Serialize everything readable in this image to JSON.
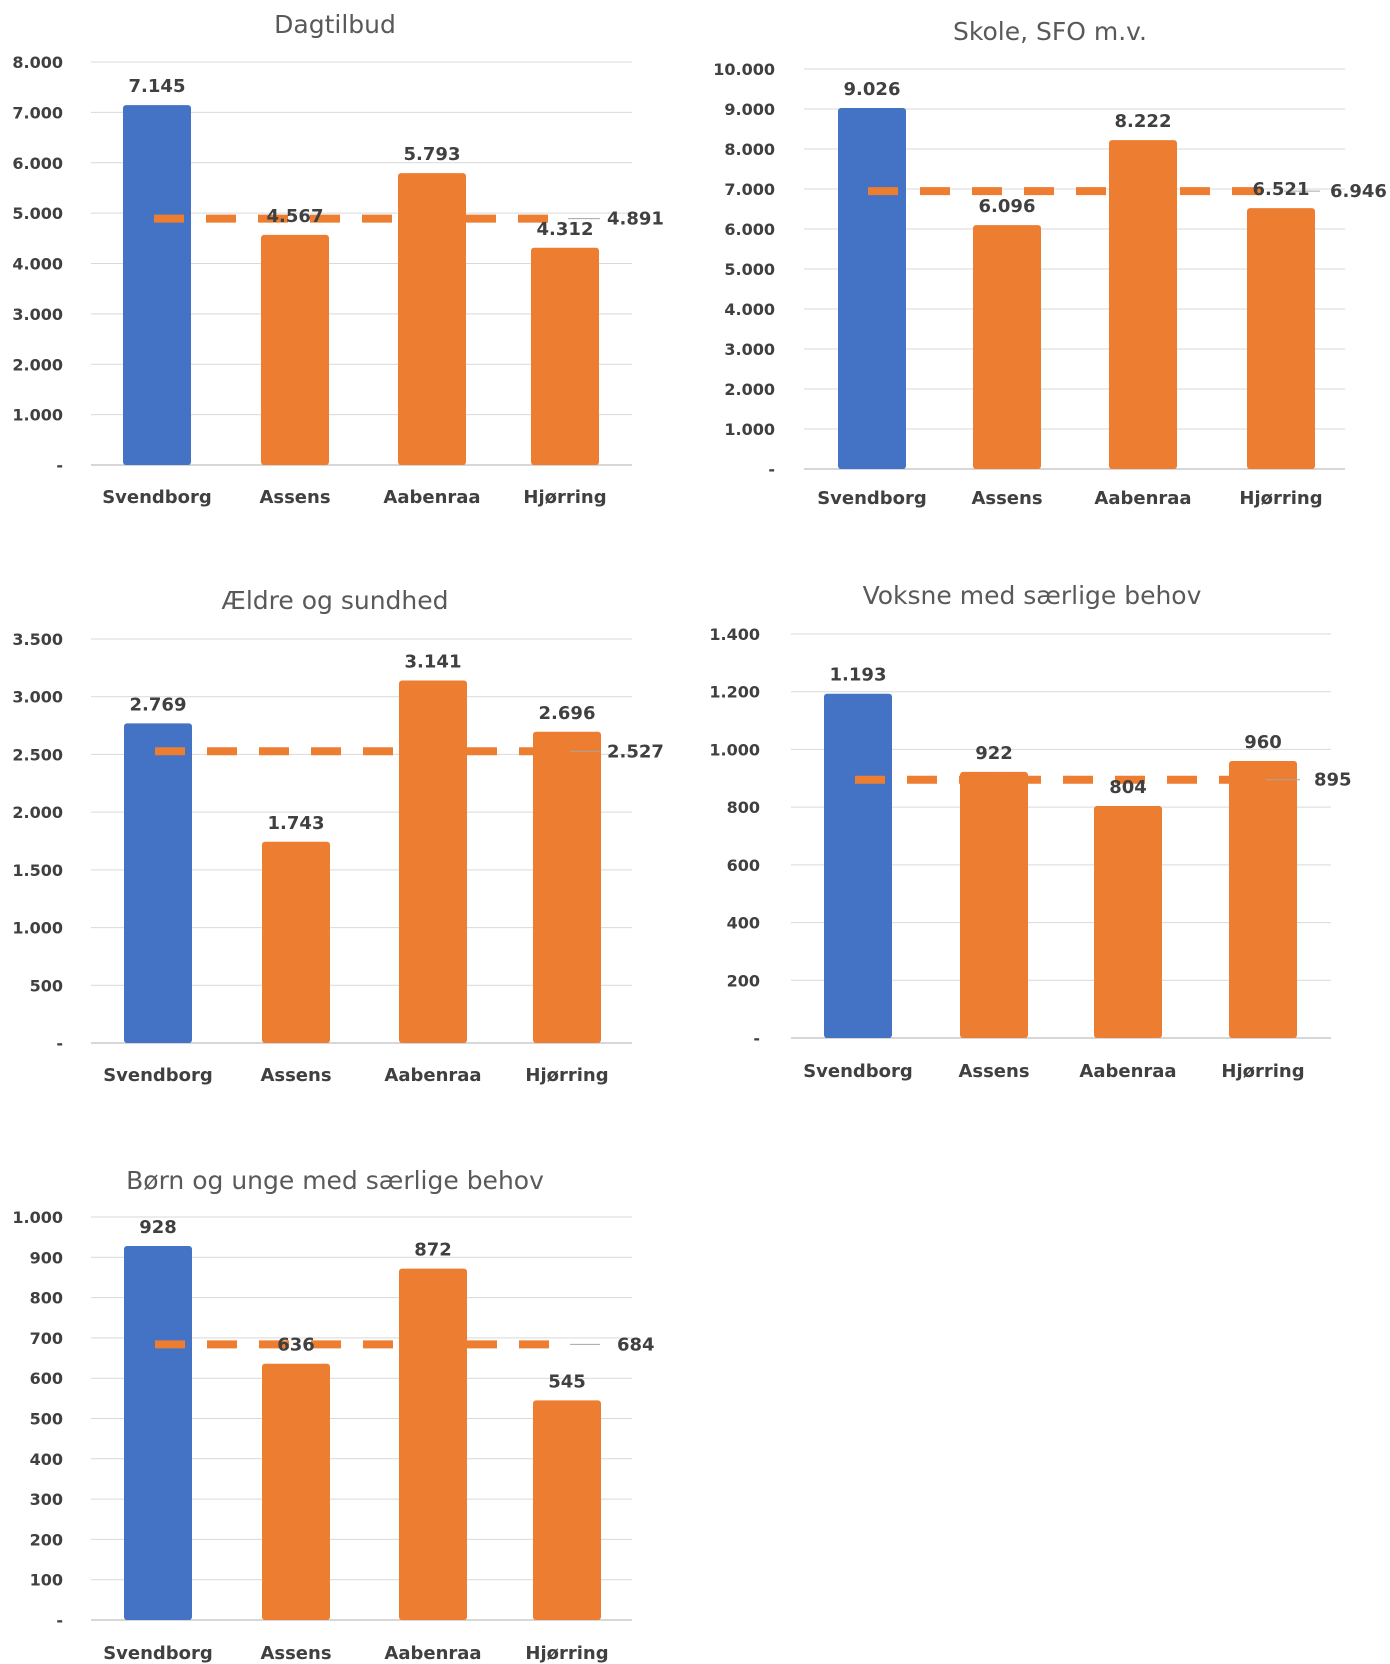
{
  "colors": {
    "highlight": "#4472C4",
    "comparison": "#ED7D31",
    "average": "#ED7D31",
    "grid": "#D9D9D9",
    "text": "#404040",
    "title": "#595959"
  },
  "chart_data": [
    {
      "type": "bar",
      "title": "Dagtilbud",
      "categories": [
        "Svendborg",
        "Assens",
        "Aabenraa",
        "Hjørring"
      ],
      "values": [
        7145,
        4567,
        5793,
        4312
      ],
      "value_labels": [
        "7.145",
        "4.567",
        "5.793",
        "4.312"
      ],
      "bar_colors": [
        "#4472C4",
        "#ED7D31",
        "#ED7D31",
        "#ED7D31"
      ],
      "average": 4891,
      "average_label": "4.891",
      "ylim": [
        0,
        8000
      ],
      "yticks": [
        0,
        1000,
        2000,
        3000,
        4000,
        5000,
        6000,
        7000,
        8000
      ],
      "ytick_labels": [
        "-",
        "1.000",
        "2.000",
        "3.000",
        "4.000",
        "5.000",
        "6.000",
        "7.000",
        "8.000"
      ],
      "grid": true
    },
    {
      "type": "bar",
      "title": "Skole, SFO m.v.",
      "categories": [
        "Svendborg",
        "Assens",
        "Aabenraa",
        "Hjørring"
      ],
      "values": [
        9026,
        6096,
        8222,
        6521
      ],
      "value_labels": [
        "9.026",
        "6.096",
        "8.222",
        "6.521"
      ],
      "bar_colors": [
        "#4472C4",
        "#ED7D31",
        "#ED7D31",
        "#ED7D31"
      ],
      "average": 6946,
      "average_label": "6.946",
      "ylim": [
        0,
        10000
      ],
      "yticks": [
        0,
        1000,
        2000,
        3000,
        4000,
        5000,
        6000,
        7000,
        8000,
        9000,
        10000
      ],
      "ytick_labels": [
        "-",
        "1.000",
        "2.000",
        "3.000",
        "4.000",
        "5.000",
        "6.000",
        "7.000",
        "8.000",
        "9.000",
        "10.000"
      ],
      "grid": true
    },
    {
      "type": "bar",
      "title": "Ældre og sundhed",
      "categories": [
        "Svendborg",
        "Assens",
        "Aabenraa",
        "Hjørring"
      ],
      "values": [
        2769,
        1743,
        3141,
        2696
      ],
      "value_labels": [
        "2.769",
        "1.743",
        "3.141",
        "2.696"
      ],
      "bar_colors": [
        "#4472C4",
        "#ED7D31",
        "#ED7D31",
        "#ED7D31"
      ],
      "average": 2527,
      "average_label": "2.527",
      "ylim": [
        0,
        3500
      ],
      "yticks": [
        0,
        500,
        1000,
        1500,
        2000,
        2500,
        3000,
        3500
      ],
      "ytick_labels": [
        "-",
        "500",
        "1.000",
        "1.500",
        "2.000",
        "2.500",
        "3.000",
        "3.500"
      ],
      "grid": true
    },
    {
      "type": "bar",
      "title": "Voksne med særlige behov",
      "categories": [
        "Svendborg",
        "Assens",
        "Aabenraa",
        "Hjørring"
      ],
      "values": [
        1193,
        922,
        804,
        960
      ],
      "value_labels": [
        "1.193",
        "922",
        "804",
        "960"
      ],
      "bar_colors": [
        "#4472C4",
        "#ED7D31",
        "#ED7D31",
        "#ED7D31"
      ],
      "average": 895,
      "average_label": "895",
      "ylim": [
        0,
        1400
      ],
      "yticks": [
        0,
        200,
        400,
        600,
        800,
        1000,
        1200,
        1400
      ],
      "ytick_labels": [
        "-",
        "200",
        "400",
        "600",
        "800",
        "1.000",
        "1.200",
        "1.400"
      ],
      "grid": true
    },
    {
      "type": "bar",
      "title": "Børn og unge med særlige behov",
      "categories": [
        "Svendborg",
        "Assens",
        "Aabenraa",
        "Hjørring"
      ],
      "values": [
        928,
        636,
        872,
        545
      ],
      "value_labels": [
        "928",
        "636",
        "872",
        "545"
      ],
      "bar_colors": [
        "#4472C4",
        "#ED7D31",
        "#ED7D31",
        "#ED7D31"
      ],
      "average": 684,
      "average_label": "684",
      "ylim": [
        0,
        1000
      ],
      "yticks": [
        0,
        100,
        200,
        300,
        400,
        500,
        600,
        700,
        800,
        900,
        1000
      ],
      "ytick_labels": [
        "-",
        "100",
        "200",
        "300",
        "400",
        "500",
        "600",
        "700",
        "800",
        "900",
        "1.000"
      ],
      "grid": true
    }
  ]
}
